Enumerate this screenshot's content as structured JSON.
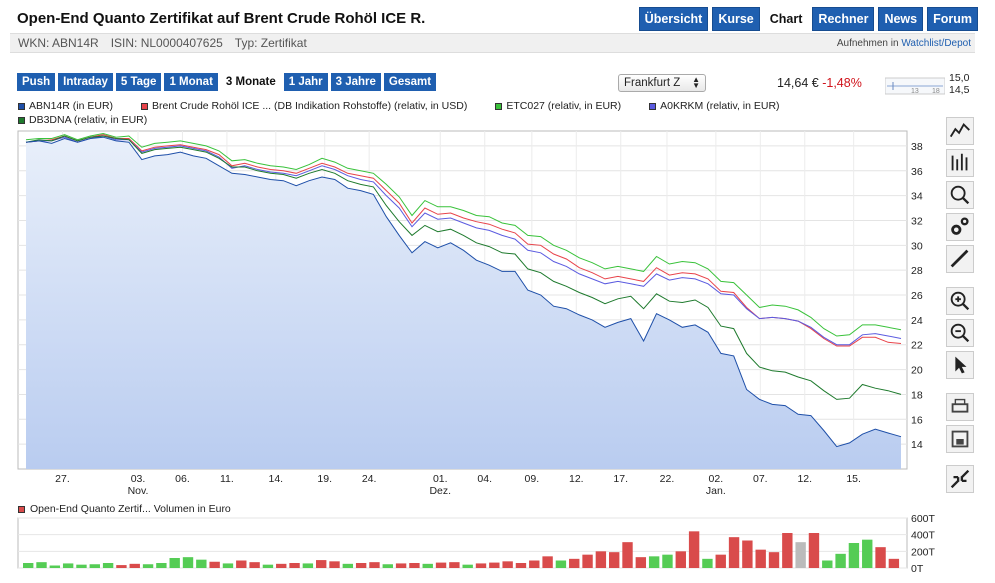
{
  "title": "Open-End Quanto Zertifikat auf Brent Crude Rohöl ICE R.",
  "nav": [
    "Übersicht",
    "Kurse",
    "Chart",
    "Rechner",
    "News",
    "Forum"
  ],
  "nav_active": "Chart",
  "info": {
    "wkn": "WKN: ABN14R",
    "isin": "ISIN: NL0000407625",
    "typ": "Typ: Zertifikat",
    "watch_prefix": "Aufnehmen in",
    "watch_link": "Watchlist/Depot"
  },
  "periods": [
    "Push",
    "Intraday",
    "5 Tage",
    "1 Monat",
    "3 Monate",
    "1 Jahr",
    "3 Jahre",
    "Gesamt"
  ],
  "period_active": "3 Monate",
  "exchange": "Frankfurt Z",
  "price": "14,64 €",
  "change": "-1,48%",
  "mini_scale": {
    "high": "15,0",
    "low": "14,5",
    "ticks": [
      "13",
      "18"
    ]
  },
  "legend": [
    {
      "label": "ABN14R (in EUR)",
      "color": "#1e4fa8"
    },
    {
      "label": "Brent Crude Rohöl ICE ... (DB Indikation Rohstoffe) (relativ, in USD)",
      "color": "#e8434a"
    },
    {
      "label": "ETC027 (relativ, in EUR)",
      "color": "#39c23a"
    },
    {
      "label": "A0KRKM (relativ, in EUR)",
      "color": "#5b5be0"
    },
    {
      "label": "DB3DNA (relativ, in EUR)",
      "color": "#1e7a2d"
    }
  ],
  "tools": [
    "line-chart-icon",
    "ohlc-chart-icon",
    "zoom-chart-icon",
    "settings-icon",
    "draw-line-icon",
    "zoom-in-icon",
    "zoom-out-icon",
    "pointer-icon",
    "print-icon",
    "save-icon",
    "shrink-icon"
  ],
  "volume_label": "Open-End Quanto Zertif... Volumen in Euro",
  "chart_data": {
    "type": "line",
    "x_ticks": [
      "27.",
      "03.",
      "06.",
      "11.",
      "14.",
      "19.",
      "24.",
      "01.",
      "04.",
      "09.",
      "12.",
      "17.",
      "22.",
      "02.",
      "07.",
      "12.",
      "15."
    ],
    "x_months": {
      "03.": "Nov.",
      "01.": "Dez.",
      "02.": "Jan."
    },
    "y_ticks": [
      14,
      16,
      18,
      20,
      22,
      24,
      26,
      28,
      30,
      32,
      34,
      36,
      38
    ],
    "ylim": [
      12,
      39.2
    ],
    "area_series": "ABN14R (in EUR)",
    "series": [
      {
        "name": "ABN14R (in EUR)",
        "color": "#1e4fa8",
        "values": [
          38.3,
          38.4,
          38.2,
          38.6,
          38.3,
          38.6,
          38.7,
          38.4,
          38.3,
          36.9,
          37.2,
          37.3,
          37.5,
          37.2,
          37.0,
          36.4,
          35.8,
          35.7,
          35.5,
          35.3,
          35.2,
          34.8,
          35.2,
          35.5,
          35.3,
          34.6,
          34.4,
          34.1,
          32.3,
          30.8,
          29.4,
          30.3,
          29.8,
          30.2,
          29.6,
          28.8,
          28.4,
          27.9,
          27.9,
          26.4,
          26.0,
          25.1,
          24.9,
          24.4,
          24.0,
          23.4,
          23.8,
          24.1,
          22.3,
          24.5,
          24.0,
          23.4,
          23.6,
          23.0,
          21.3,
          21.1,
          18.4,
          17.6,
          17.2,
          17.1,
          16.4,
          16.3,
          15.1,
          13.8,
          14.1,
          14.8,
          15.2,
          14.9,
          14.6
        ]
      },
      {
        "name": "Brent Crude Rohöl ICE ... (DB Indikation Rohstoffe) (relativ, in USD)",
        "color": "#e8434a",
        "values": [
          38.3,
          38.4,
          38.5,
          38.8,
          38.4,
          38.7,
          38.9,
          38.6,
          38.6,
          37.6,
          37.9,
          38.0,
          38.1,
          37.9,
          37.7,
          37.3,
          36.4,
          36.6,
          36.3,
          36.1,
          36.0,
          35.8,
          36.2,
          36.6,
          36.3,
          35.8,
          35.6,
          35.4,
          34.4,
          33.4,
          31.8,
          33.0,
          32.5,
          32.6,
          32.2,
          31.9,
          31.7,
          31.3,
          31.0,
          30.1,
          30.0,
          29.3,
          28.9,
          28.2,
          27.8,
          27.3,
          27.5,
          27.3,
          27.1,
          28.2,
          27.6,
          27.8,
          27.7,
          27.3,
          26.3,
          26.2,
          25.0,
          24.1,
          24.2,
          24.1,
          23.9,
          23.3,
          22.5,
          21.9,
          21.9,
          22.6,
          22.6,
          22.2,
          22.1
        ]
      },
      {
        "name": "ETC027 (relativ, in EUR)",
        "color": "#39c23a",
        "values": [
          38.5,
          38.6,
          38.6,
          38.9,
          38.5,
          38.8,
          39.0,
          38.7,
          38.8,
          37.9,
          38.2,
          38.3,
          38.4,
          38.2,
          38.0,
          37.6,
          36.8,
          36.9,
          36.6,
          36.4,
          36.3,
          36.1,
          36.5,
          37.0,
          36.7,
          36.2,
          36.0,
          35.8,
          34.9,
          33.9,
          32.4,
          33.6,
          33.1,
          33.1,
          32.8,
          32.4,
          32.3,
          31.8,
          31.6,
          30.8,
          30.7,
          30.0,
          29.6,
          29.0,
          28.6,
          28.1,
          28.3,
          28.1,
          27.9,
          29.1,
          28.5,
          28.7,
          28.6,
          28.1,
          27.1,
          27.0,
          26.0,
          25.0,
          25.2,
          25.1,
          24.8,
          24.2,
          23.3,
          22.7,
          22.8,
          23.6,
          23.6,
          23.4,
          23.2
        ]
      },
      {
        "name": "A0KRKM (relativ, in EUR)",
        "color": "#5b5be0",
        "values": [
          38.3,
          38.4,
          38.4,
          38.7,
          38.3,
          38.6,
          38.8,
          38.5,
          38.5,
          37.5,
          37.8,
          37.9,
          38.0,
          37.8,
          37.6,
          37.1,
          36.2,
          36.4,
          36.1,
          35.9,
          35.8,
          35.6,
          36.0,
          36.4,
          36.1,
          35.6,
          35.3,
          35.1,
          34.0,
          33.0,
          31.5,
          32.6,
          32.1,
          32.2,
          31.8,
          31.4,
          31.2,
          30.8,
          30.5,
          29.6,
          29.4,
          28.7,
          28.3,
          27.7,
          27.3,
          26.9,
          27.1,
          26.9,
          26.7,
          27.7,
          27.2,
          27.4,
          27.3,
          26.9,
          26.1,
          26.0,
          24.9,
          24.1,
          24.2,
          24.1,
          23.9,
          23.4,
          22.6,
          22.0,
          22.0,
          22.8,
          22.9,
          22.7,
          22.5
        ]
      },
      {
        "name": "DB3DNA (relativ, in EUR)",
        "color": "#1e7a2d",
        "values": [
          38.3,
          38.5,
          38.4,
          38.8,
          38.4,
          38.7,
          38.8,
          38.6,
          38.5,
          37.4,
          37.7,
          37.8,
          37.9,
          37.7,
          37.5,
          37.0,
          36.3,
          36.3,
          36.0,
          35.8,
          35.7,
          35.4,
          35.8,
          36.1,
          35.8,
          35.2,
          34.9,
          34.7,
          33.2,
          31.9,
          30.8,
          31.6,
          31.1,
          31.3,
          30.8,
          30.2,
          29.9,
          29.4,
          29.3,
          28.1,
          27.8,
          27.1,
          26.7,
          26.2,
          25.8,
          25.3,
          25.7,
          25.9,
          24.9,
          26.1,
          25.5,
          25.4,
          25.6,
          25.0,
          23.5,
          23.3,
          21.3,
          20.2,
          19.9,
          19.8,
          19.4,
          19.1,
          18.3,
          17.6,
          17.7,
          18.8,
          18.5,
          18.3,
          18.0
        ]
      }
    ],
    "volume": {
      "y_ticks": [
        "600T",
        "400T",
        "200T",
        "0T"
      ],
      "ymax": 600,
      "values": [
        60,
        70,
        30,
        55,
        40,
        45,
        60,
        35,
        50,
        45,
        60,
        120,
        130,
        100,
        75,
        55,
        90,
        70,
        40,
        50,
        60,
        55,
        95,
        80,
        50,
        60,
        70,
        45,
        55,
        60,
        50,
        65,
        70,
        40,
        55,
        65,
        80,
        60,
        90,
        140,
        90,
        110,
        160,
        200,
        190,
        310,
        130,
        140,
        160,
        200,
        440,
        110,
        160,
        370,
        330,
        220,
        190,
        420,
        310,
        420,
        90,
        170,
        300,
        340,
        250,
        110
      ],
      "colors": [
        "g",
        "g",
        "g",
        "g",
        "g",
        "g",
        "g",
        "r",
        "r",
        "g",
        "g",
        "g",
        "g",
        "g",
        "r",
        "g",
        "r",
        "r",
        "g",
        "r",
        "r",
        "g",
        "r",
        "r",
        "g",
        "r",
        "r",
        "g",
        "r",
        "r",
        "g",
        "r",
        "r",
        "g",
        "r",
        "r",
        "r",
        "r",
        "r",
        "r",
        "g",
        "r",
        "r",
        "r",
        "r",
        "r",
        "r",
        "g",
        "g",
        "r",
        "r",
        "g",
        "r",
        "r",
        "r",
        "r",
        "r",
        "r",
        "x",
        "r",
        "g",
        "g",
        "g",
        "g",
        "r",
        "r"
      ]
    }
  }
}
